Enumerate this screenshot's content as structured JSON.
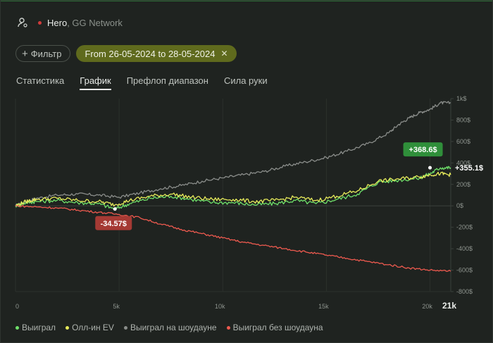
{
  "header": {
    "player": "Hero",
    "network": ", GG Network"
  },
  "chips": {
    "filter_label": "Фильтр",
    "date_label": "From 26-05-2024 to 28-05-2024",
    "clear_icon": "close-icon"
  },
  "tabs": [
    "Статистика",
    "График",
    "Префлоп диапазон",
    "Сила руки"
  ],
  "active_tab": "График",
  "colors": {
    "won": "#6fe06a",
    "allin_ev": "#e6ea5a",
    "showdown": "#8a8d8a",
    "non_showdown": "#ee5a4f",
    "badge_pos": "#2f8f3a",
    "badge_neg": "#a53a34",
    "accent": "#5f6a1d"
  },
  "chart_data": {
    "type": "line",
    "xlim": [
      0,
      21000
    ],
    "ylim": [
      -800,
      1000
    ],
    "x_ticks": [
      0,
      5000,
      10000,
      15000,
      20000
    ],
    "x_tick_labels": [
      "0",
      "5k",
      "10k",
      "15k",
      "20k"
    ],
    "x_max_label": "21k",
    "y_ticks": [
      1000,
      800,
      600,
      400,
      200,
      0,
      -200,
      -400,
      -600,
      -800
    ],
    "y_tick_labels": [
      "1k$",
      "800$",
      "600$",
      "400$",
      "200$",
      "0$",
      "-200$",
      "-400$",
      "-600$",
      "-800$"
    ],
    "series": [
      {
        "name": "Выиграл на шоудауне",
        "color": "#8a8d8a",
        "x": [
          0,
          500,
          1000,
          2000,
          3000,
          4000,
          5000,
          6000,
          7000,
          8000,
          9000,
          10000,
          11000,
          12000,
          13000,
          14000,
          15000,
          16000,
          17000,
          18000,
          18500,
          19000,
          19500,
          20000,
          20500,
          21000
        ],
        "y": [
          0,
          40,
          70,
          100,
          110,
          100,
          80,
          120,
          160,
          190,
          230,
          260,
          290,
          320,
          370,
          410,
          450,
          510,
          580,
          680,
          760,
          820,
          870,
          900,
          960,
          960
        ]
      },
      {
        "name": "Выиграл",
        "color": "#6fe06a",
        "x": [
          0,
          500,
          1000,
          2000,
          3000,
          4000,
          4800,
          5500,
          6500,
          7500,
          8500,
          9500,
          10500,
          11500,
          12500,
          13500,
          14500,
          15500,
          16500,
          17500,
          18500,
          19500,
          20000,
          20500,
          21000
        ],
        "y": [
          0,
          30,
          40,
          50,
          30,
          20,
          -30,
          20,
          70,
          90,
          60,
          30,
          30,
          10,
          20,
          50,
          20,
          60,
          110,
          220,
          240,
          260,
          300,
          355,
          355
        ]
      },
      {
        "name": "Олл-ин EV",
        "color": "#e6ea5a",
        "x": [
          0,
          500,
          1000,
          2000,
          3000,
          4000,
          4800,
          5500,
          6500,
          7500,
          8500,
          9500,
          10500,
          11500,
          12500,
          13500,
          14500,
          15500,
          16500,
          17500,
          18500,
          19500,
          20000,
          20500,
          21000
        ],
        "y": [
          0,
          40,
          60,
          70,
          50,
          40,
          10,
          50,
          90,
          110,
          80,
          60,
          60,
          40,
          50,
          80,
          50,
          90,
          140,
          230,
          250,
          270,
          290,
          300,
          290
        ]
      },
      {
        "name": "Выиграл без шоудауна",
        "color": "#ee5a4f",
        "x": [
          0,
          1000,
          2000,
          3000,
          4000,
          5000,
          6000,
          7000,
          8000,
          9000,
          10000,
          11000,
          12000,
          13000,
          14000,
          15000,
          16000,
          17000,
          18000,
          19000,
          20000,
          21000
        ],
        "y": [
          0,
          -10,
          -20,
          -40,
          -60,
          -80,
          -110,
          -170,
          -220,
          -260,
          -300,
          -340,
          -370,
          -400,
          -430,
          -460,
          -490,
          -520,
          -550,
          -580,
          -600,
          -610
        ]
      }
    ],
    "annotations": [
      {
        "text": "+368.6$",
        "kind": "badge-positive"
      },
      {
        "text": "+355.1$",
        "kind": "value-label"
      },
      {
        "text": "-34.57$",
        "kind": "badge-negative"
      }
    ],
    "legend": [
      "Выиграл",
      "Олл-ин EV",
      "Выиграл на шоудауне",
      "Выиграл без шоудауна"
    ]
  }
}
